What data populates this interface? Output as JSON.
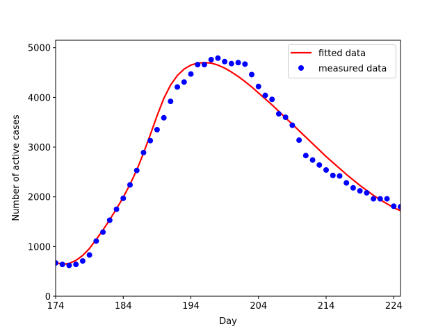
{
  "chart_data": {
    "type": "scatter",
    "title": "",
    "xlabel": "Day",
    "ylabel": "Number of active cases",
    "xlim": [
      174,
      225
    ],
    "ylim": [
      0,
      5150
    ],
    "xticks": [
      174,
      184,
      194,
      204,
      214,
      224
    ],
    "yticks": [
      0,
      1000,
      2000,
      3000,
      4000,
      5000
    ],
    "grid": false,
    "legend_position": "top-right",
    "series": [
      {
        "name": "fitted data",
        "kind": "line",
        "color": "#ff0000",
        "x": [
          174,
          175,
          176,
          177,
          178,
          179,
          180,
          181,
          182,
          183,
          184,
          185,
          186,
          187,
          188,
          189,
          190,
          191,
          192,
          193,
          194,
          195,
          196,
          197,
          198,
          199,
          200,
          201,
          202,
          203,
          204,
          205,
          206,
          207,
          208,
          209,
          210,
          211,
          212,
          213,
          214,
          215,
          216,
          217,
          218,
          219,
          220,
          221,
          222,
          223,
          224,
          225
        ],
        "y": [
          680,
          640,
          660,
          720,
          820,
          960,
          1140,
          1330,
          1540,
          1760,
          1990,
          2250,
          2540,
          2880,
          3250,
          3630,
          3980,
          4250,
          4440,
          4570,
          4650,
          4690,
          4700,
          4690,
          4650,
          4590,
          4510,
          4420,
          4320,
          4210,
          4090,
          3970,
          3850,
          3720,
          3590,
          3460,
          3330,
          3200,
          3070,
          2940,
          2810,
          2690,
          2570,
          2450,
          2340,
          2230,
          2130,
          2030,
          1940,
          1860,
          1780,
          1720
        ]
      },
      {
        "name": "measured data",
        "kind": "scatter",
        "color": "#0000ff",
        "x": [
          174,
          175,
          176,
          177,
          178,
          179,
          180,
          181,
          182,
          183,
          184,
          185,
          186,
          187,
          188,
          189,
          190,
          191,
          192,
          193,
          194,
          195,
          196,
          197,
          198,
          199,
          200,
          201,
          202,
          203,
          204,
          205,
          206,
          207,
          208,
          209,
          210,
          211,
          212,
          213,
          214,
          215,
          216,
          217,
          218,
          219,
          220,
          221,
          222,
          223,
          224,
          225
        ],
        "y": [
          670,
          640,
          620,
          640,
          710,
          830,
          1110,
          1290,
          1530,
          1750,
          1970,
          2240,
          2530,
          2890,
          3130,
          3350,
          3590,
          3920,
          4210,
          4310,
          4470,
          4660,
          4660,
          4760,
          4790,
          4720,
          4680,
          4700,
          4670,
          4460,
          4220,
          4040,
          3960,
          3670,
          3600,
          3440,
          3140,
          2830,
          2740,
          2640,
          2540,
          2430,
          2420,
          2280,
          2180,
          2120,
          2080,
          1960,
          1960,
          1960,
          1810,
          1800
        ]
      }
    ]
  }
}
